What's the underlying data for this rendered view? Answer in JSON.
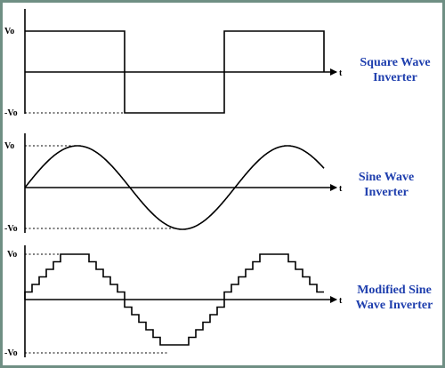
{
  "labels": {
    "vo": "Vo",
    "neg_vo": "-Vo",
    "t": "t"
  },
  "panels": [
    {
      "title_lines": [
        "Square Wave",
        "Inverter"
      ]
    },
    {
      "title_lines": [
        "Sine Wave",
        "Inverter"
      ]
    },
    {
      "title_lines": [
        "Modified Sine",
        "Wave Inverter"
      ]
    }
  ],
  "colors": {
    "title": "#1f3fae",
    "frame": "#6f8f84",
    "stroke": "#000000"
  }
}
